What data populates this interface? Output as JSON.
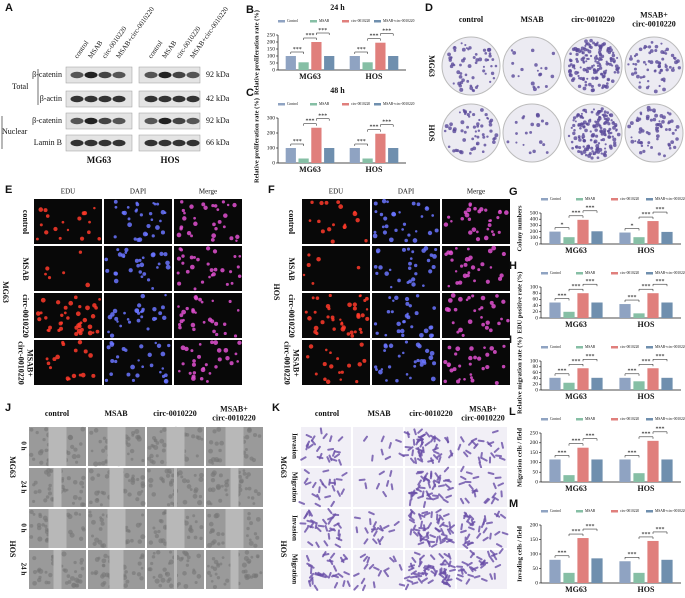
{
  "panels": {
    "A": {
      "label": "A",
      "columns": [
        "control",
        "MSAB",
        "circ-0010220",
        "MSAB+circ-0010220"
      ],
      "groups": [
        "Total",
        "Nuclear"
      ],
      "rows": [
        "β-catenin",
        "β-actin",
        "β-catenin",
        "Lamin B"
      ],
      "weights": [
        "92 kDa",
        "42 kDa",
        "92 kDa",
        "66 kDa"
      ],
      "cell_lines": [
        "MG63",
        "HOS"
      ]
    },
    "D": {
      "label": "D",
      "columns": [
        [
          "control"
        ],
        [
          "MSAB"
        ],
        [
          "circ-0010220"
        ],
        [
          "MSAB+",
          "circ-0010220"
        ]
      ],
      "rows": [
        "MG63",
        "HOS"
      ]
    },
    "E": {
      "label": "E",
      "columns": [
        "EDU",
        "DAPI",
        "Merge"
      ],
      "rows": [
        [
          "control"
        ],
        [
          "MSAB"
        ],
        [
          "circ-0010220"
        ],
        [
          "MSAB+",
          "circ-0010220"
        ]
      ],
      "cell_line": "MG63"
    },
    "F": {
      "label": "F",
      "columns": [
        "EDU",
        "DAPI",
        "Merge"
      ],
      "rows": [
        [
          "control"
        ],
        [
          "MSAB"
        ],
        [
          "circ-0010220"
        ],
        [
          "MSAB+",
          "circ-0010220"
        ]
      ],
      "cell_line": "HOS"
    },
    "J": {
      "label": "J",
      "columns": [
        [
          "control"
        ],
        [
          "MSAB"
        ],
        [
          "circ-0010220"
        ],
        [
          "MSAB+",
          "circ-0010220"
        ]
      ],
      "rows": [
        "0 h",
        "24 h",
        "0 h",
        "24 h"
      ],
      "cell_lines": [
        "MG63",
        "HOS"
      ]
    },
    "K": {
      "label": "K",
      "columns": [
        [
          "control"
        ],
        [
          "MSAB"
        ],
        [
          "circ-0010220"
        ],
        [
          "MSAB+",
          "circ-0010220"
        ]
      ],
      "rows": [
        "Invasion",
        "Migration",
        "Invasion",
        "Migration"
      ],
      "cell_lines": [
        "MG63",
        "HOS"
      ]
    }
  },
  "chart_data": [
    {
      "type": "bar",
      "label": "B",
      "title": "24 h",
      "y_label": "Relative proliferation rate (%)",
      "categories": [
        "MG63",
        "HOS"
      ],
      "ylim": [
        0,
        250
      ],
      "yticks": [
        0,
        50,
        100,
        150,
        200,
        250
      ],
      "series": [
        {
          "name": "Control",
          "color": "#8fa3c2",
          "values": [
            100,
            100
          ]
        },
        {
          "name": "MSAB",
          "color": "#86bfa5",
          "values": [
            55,
            55
          ]
        },
        {
          "name": "circ-0010220",
          "color": "#e07f7c",
          "values": [
            200,
            195
          ]
        },
        {
          "name": "MSAB+circ-0010220",
          "color": "#6f8fae",
          "values": [
            100,
            100
          ]
        }
      ],
      "significance": [
        [
          "***",
          "***",
          "***"
        ],
        [
          "***",
          "***",
          "***"
        ]
      ]
    },
    {
      "type": "bar",
      "label": "C",
      "title": "48 h",
      "y_label": "Relative proliferation rate (%)",
      "categories": [
        "MG63",
        "HOS"
      ],
      "ylim": [
        0,
        300
      ],
      "yticks": [
        0,
        100,
        200,
        300
      ],
      "series": [
        {
          "name": "Control",
          "color": "#8fa3c2",
          "values": [
            100,
            100
          ]
        },
        {
          "name": "MSAB",
          "color": "#86bfa5",
          "values": [
            30,
            30
          ]
        },
        {
          "name": "circ-0010220",
          "color": "#e07f7c",
          "values": [
            235,
            195
          ]
        },
        {
          "name": "MSAB+circ-0010220",
          "color": "#6f8fae",
          "values": [
            100,
            100
          ]
        }
      ],
      "significance": [
        [
          "***",
          "***",
          "***"
        ],
        [
          "***",
          "***",
          "***"
        ]
      ]
    },
    {
      "type": "bar",
      "label": "G",
      "y_label": "Colony numbers",
      "categories": [
        "MG63",
        "HOS"
      ],
      "ylim": [
        0,
        500
      ],
      "yticks": [
        0,
        100,
        200,
        300,
        400,
        500
      ],
      "series": [
        {
          "name": "Control",
          "color": "#8fa3c2",
          "values": [
            200,
            185
          ]
        },
        {
          "name": "MSAB",
          "color": "#86bfa5",
          "values": [
            110,
            110
          ]
        },
        {
          "name": "circ-0010220",
          "color": "#e07f7c",
          "values": [
            390,
            370
          ]
        },
        {
          "name": "MSAB+circ-0010220",
          "color": "#6f8fae",
          "values": [
            205,
            195
          ]
        }
      ],
      "significance": [
        [
          "*",
          "***",
          "***"
        ],
        [
          "*",
          "***",
          "***"
        ]
      ]
    },
    {
      "type": "bar",
      "label": "H",
      "y_label": "EDU positive rate (%)",
      "categories": [
        "MG63",
        "HOS"
      ],
      "ylim": [
        0,
        100
      ],
      "yticks": [
        0,
        20,
        40,
        60,
        80,
        100
      ],
      "series": [
        {
          "name": "Control",
          "color": "#8fa3c2",
          "values": [
            50,
            45
          ]
        },
        {
          "name": "MSAB",
          "color": "#86bfa5",
          "values": [
            20,
            15
          ]
        },
        {
          "name": "circ-0010220",
          "color": "#e07f7c",
          "values": [
            80,
            80
          ]
        },
        {
          "name": "MSAB+circ-0010220",
          "color": "#6f8fae",
          "values": [
            50,
            50
          ]
        }
      ],
      "significance": [
        [
          "***",
          "***",
          "***"
        ],
        [
          "***",
          "***",
          "***"
        ]
      ]
    },
    {
      "type": "bar",
      "label": "I",
      "y_label": "Relative migration rate (%)",
      "categories": [
        "MG63",
        "HOS"
      ],
      "ylim": [
        0,
        100
      ],
      "yticks": [
        0,
        20,
        40,
        60,
        80,
        100
      ],
      "series": [
        {
          "name": "Control",
          "color": "#8fa3c2",
          "values": [
            42,
            42
          ]
        },
        {
          "name": "MSAB",
          "color": "#86bfa5",
          "values": [
            25,
            30
          ]
        },
        {
          "name": "circ-0010220",
          "color": "#e07f7c",
          "values": [
            75,
            75
          ]
        },
        {
          "name": "MSAB+circ-0010220",
          "color": "#6f8fae",
          "values": [
            42,
            42
          ]
        }
      ],
      "significance": [
        [
          "***",
          "***",
          "***"
        ],
        [
          "***",
          "***",
          "***"
        ]
      ]
    },
    {
      "type": "bar",
      "label": "L",
      "y_label": "Migration cells / field",
      "categories": [
        "MG63",
        "HOS"
      ],
      "ylim": [
        0,
        250
      ],
      "yticks": [
        0,
        50,
        100,
        150,
        200,
        250
      ],
      "series": [
        {
          "name": "Control",
          "color": "#8fa3c2",
          "values": [
            115,
            115
          ]
        },
        {
          "name": "MSAB",
          "color": "#86bfa5",
          "values": [
            35,
            45
          ]
        },
        {
          "name": "circ-0010220",
          "color": "#e07f7c",
          "values": [
            175,
            210
          ]
        },
        {
          "name": "MSAB+circ-0010220",
          "color": "#6f8fae",
          "values": [
            115,
            115
          ]
        }
      ],
      "significance": [
        [
          "***",
          "***",
          "***"
        ],
        [
          "***",
          "***",
          "***"
        ]
      ]
    },
    {
      "type": "bar",
      "label": "M",
      "y_label": "Invading cells / field",
      "categories": [
        "MG63",
        "HOS"
      ],
      "ylim": [
        0,
        200
      ],
      "yticks": [
        0,
        50,
        100,
        150,
        200
      ],
      "series": [
        {
          "name": "Control",
          "color": "#8fa3c2",
          "values": [
            80,
            75
          ]
        },
        {
          "name": "MSAB",
          "color": "#86bfa5",
          "values": [
            35,
            35
          ]
        },
        {
          "name": "circ-0010220",
          "color": "#e07f7c",
          "values": [
            155,
            145
          ]
        },
        {
          "name": "MSAB+circ-0010220",
          "color": "#6f8fae",
          "values": [
            85,
            80
          ]
        }
      ],
      "significance": [
        [
          "***",
          "***",
          "***"
        ],
        [
          "***",
          "***",
          "***"
        ]
      ]
    }
  ]
}
